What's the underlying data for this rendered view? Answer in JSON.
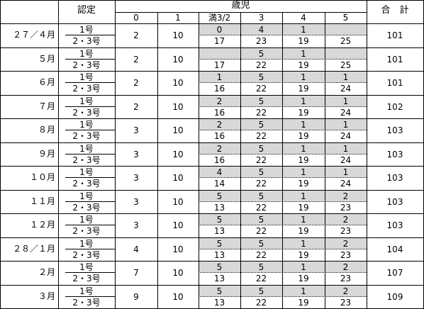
{
  "header": {
    "nintei": "認定",
    "age_group": "歳児",
    "ages": [
      "0",
      "1",
      "満3/2",
      "3",
      "4",
      "5"
    ],
    "total": "合　計"
  },
  "sub_labels": {
    "type1": "1号",
    "type23": "2・3号"
  },
  "rows": [
    {
      "month": "２７／４月",
      "age0": "2",
      "age1": "10",
      "t1": [
        "0",
        "4",
        "1",
        ""
      ],
      "t23": [
        "17",
        "23",
        "19",
        "25"
      ],
      "total": "101"
    },
    {
      "month": "５月",
      "age0": "2",
      "age1": "10",
      "t1": [
        "",
        "5",
        "1",
        ""
      ],
      "t23": [
        "17",
        "22",
        "19",
        "25"
      ],
      "total": "101"
    },
    {
      "month": "６月",
      "age0": "2",
      "age1": "10",
      "t1": [
        "1",
        "5",
        "1",
        "1"
      ],
      "t23": [
        "16",
        "22",
        "19",
        "24"
      ],
      "total": "101"
    },
    {
      "month": "７月",
      "age0": "2",
      "age1": "10",
      "t1": [
        "2",
        "5",
        "1",
        "1"
      ],
      "t23": [
        "16",
        "22",
        "19",
        "24"
      ],
      "total": "102"
    },
    {
      "month": "８月",
      "age0": "3",
      "age1": "10",
      "t1": [
        "2",
        "5",
        "1",
        "1"
      ],
      "t23": [
        "16",
        "22",
        "19",
        "24"
      ],
      "total": "103"
    },
    {
      "month": "９月",
      "age0": "3",
      "age1": "10",
      "t1": [
        "2",
        "5",
        "1",
        "1"
      ],
      "t23": [
        "16",
        "22",
        "19",
        "24"
      ],
      "total": "103"
    },
    {
      "month": "１０月",
      "age0": "3",
      "age1": "10",
      "t1": [
        "4",
        "5",
        "1",
        "1"
      ],
      "t23": [
        "14",
        "22",
        "19",
        "24"
      ],
      "total": "103"
    },
    {
      "month": "１１月",
      "age0": "3",
      "age1": "10",
      "t1": [
        "5",
        "5",
        "1",
        "2"
      ],
      "t23": [
        "13",
        "22",
        "19",
        "23"
      ],
      "total": "103"
    },
    {
      "month": "１２月",
      "age0": "3",
      "age1": "10",
      "t1": [
        "5",
        "5",
        "1",
        "2"
      ],
      "t23": [
        "13",
        "22",
        "19",
        "23"
      ],
      "total": "103"
    },
    {
      "month": "２８／１月",
      "age0": "4",
      "age1": "10",
      "t1": [
        "5",
        "5",
        "1",
        "2"
      ],
      "t23": [
        "13",
        "22",
        "19",
        "23"
      ],
      "total": "104"
    },
    {
      "month": "２月",
      "age0": "7",
      "age1": "10",
      "t1": [
        "5",
        "5",
        "1",
        "2"
      ],
      "t23": [
        "13",
        "22",
        "19",
        "23"
      ],
      "total": "107"
    },
    {
      "month": "３月",
      "age0": "9",
      "age1": "10",
      "t1": [
        "5",
        "5",
        "1",
        "2"
      ],
      "t23": [
        "13",
        "22",
        "19",
        "23"
      ],
      "total": "109"
    }
  ]
}
